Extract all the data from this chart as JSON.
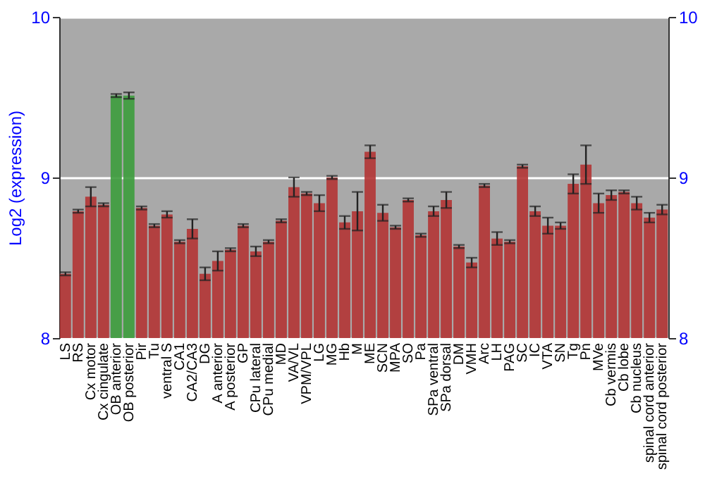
{
  "chart_data": {
    "type": "bar",
    "ylabel": "Log2 (expression)",
    "categories": [
      "LS",
      "RS",
      "Cx motor",
      "Cx cingulate",
      "OB anterior",
      "OB posterior",
      "Pir",
      "Tu",
      "ventral S",
      "CA1",
      "CA2/CA3",
      "DG",
      "A anterior",
      "A posterior",
      "GP",
      "CPu lateral",
      "CPu medial",
      "MD",
      "VA/VL",
      "VPM/VPL",
      "LG",
      "MG",
      "Hb",
      "M",
      "ME",
      "SCN",
      "MPA",
      "SO",
      "Pa",
      "SPa ventral",
      "SPa dorsal",
      "DM",
      "VMH",
      "Arc",
      "LH",
      "PAG",
      "SC",
      "IC",
      "VTA",
      "SN",
      "Tg",
      "Pn",
      "MVe",
      "Cb vermis",
      "Cb lobe",
      "Cb nucleus",
      "spinal cord anterior",
      "spinal cord posterior"
    ],
    "values": [
      8.4,
      8.79,
      8.88,
      8.83,
      9.51,
      9.51,
      8.81,
      8.7,
      8.77,
      8.6,
      8.68,
      8.4,
      8.48,
      8.55,
      8.7,
      8.54,
      8.6,
      8.73,
      8.94,
      8.9,
      8.84,
      9.0,
      8.72,
      8.79,
      9.16,
      8.78,
      8.69,
      8.86,
      8.64,
      8.79,
      8.86,
      8.57,
      8.47,
      8.95,
      8.62,
      8.6,
      9.07,
      8.79,
      8.7,
      8.7,
      8.96,
      9.08,
      8.84,
      8.89,
      8.91,
      8.84,
      8.75,
      8.8
    ],
    "errors": [
      0.01,
      0.01,
      0.06,
      0.01,
      0.01,
      0.02,
      0.01,
      0.01,
      0.02,
      0.01,
      0.06,
      0.04,
      0.06,
      0.01,
      0.01,
      0.03,
      0.01,
      0.01,
      0.06,
      0.01,
      0.05,
      0.01,
      0.04,
      0.12,
      0.04,
      0.05,
      0.01,
      0.01,
      0.01,
      0.03,
      0.05,
      0.01,
      0.03,
      0.01,
      0.04,
      0.01,
      0.01,
      0.03,
      0.05,
      0.02,
      0.06,
      0.12,
      0.06,
      0.03,
      0.01,
      0.04,
      0.03,
      0.03
    ],
    "colors": [
      "#b23434",
      "#b23434",
      "#b23434",
      "#b23434",
      "#3c9c3c",
      "#3c9c3c",
      "#b23434",
      "#b23434",
      "#b23434",
      "#b23434",
      "#b23434",
      "#b23434",
      "#b23434",
      "#b23434",
      "#b23434",
      "#b23434",
      "#b23434",
      "#b23434",
      "#b23434",
      "#b23434",
      "#b23434",
      "#b23434",
      "#b23434",
      "#b23434",
      "#b23434",
      "#b23434",
      "#b23434",
      "#b23434",
      "#b23434",
      "#b23434",
      "#b23434",
      "#b23434",
      "#b23434",
      "#b23434",
      "#b23434",
      "#b23434",
      "#b23434",
      "#b23434",
      "#b23434",
      "#b23434",
      "#b23434",
      "#b23434",
      "#b23434",
      "#b23434",
      "#b23434",
      "#b23434",
      "#b23434",
      "#b23434"
    ],
    "ylim": [
      8,
      10
    ],
    "yticks": [
      8,
      9,
      10
    ],
    "y2lim": [
      8,
      10
    ],
    "y2ticks": [
      8,
      9,
      10
    ],
    "grid": "y"
  }
}
